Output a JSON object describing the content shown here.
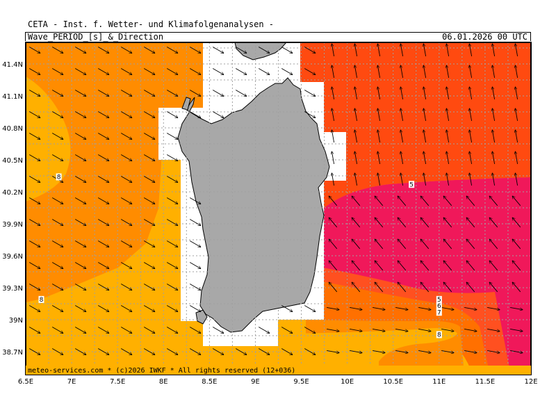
{
  "header": {
    "institute": "CETA - Inst. f. Wetter- und Klimafolgenanalysen -",
    "product": "Wave_PERIOD_[s]_&_Direction",
    "valid_time": "06.01.2026 00 UTC"
  },
  "footer": "meteo-services.com * (c)2026 IWKF * All rights reserved (12+036)",
  "axes": {
    "lon_ticks": [
      "6.5E",
      "7E",
      "7.5E",
      "8E",
      "8.5E",
      "9E",
      "9.5E",
      "10E",
      "10.5E",
      "11E",
      "11.5E",
      "12E"
    ],
    "lat_ticks": [
      "41.4N",
      "41.1N",
      "40.8N",
      "40.5N",
      "40.2N",
      "39.9N",
      "39.6N",
      "39.3N",
      "39N",
      "38.7N"
    ]
  },
  "colors": {
    "period_8_plus": "#FF8C00",
    "period_7_8": "#FFB000",
    "period_6_7": "#FFA800",
    "period_5_6": "#FF7000",
    "period_low": "#FF4A10",
    "period_lowest": "#F0185A",
    "land": "#A8A8A8",
    "grid": "#A0A0A0"
  },
  "contour_labels": [
    {
      "text": "8",
      "lon": 6.86,
      "lat": 40.34
    },
    {
      "text": "8",
      "lon": 6.67,
      "lat": 39.19
    },
    {
      "text": "5",
      "lon": 10.7,
      "lat": 40.27
    },
    {
      "text": "5",
      "lon": 11.0,
      "lat": 39.19
    },
    {
      "text": "6",
      "lon": 11.0,
      "lat": 39.13
    },
    {
      "text": "7",
      "lon": 11.0,
      "lat": 39.07
    },
    {
      "text": "8",
      "lon": 11.0,
      "lat": 38.86
    }
  ]
}
